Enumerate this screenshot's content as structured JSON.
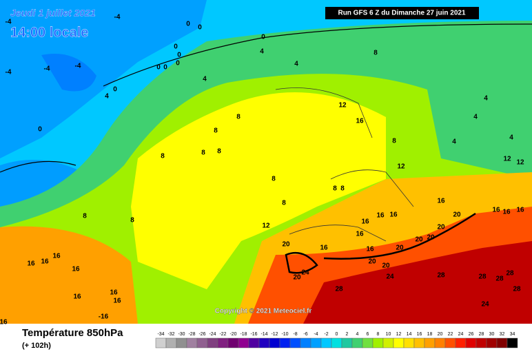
{
  "header": {
    "date": "Jeudi 1 juillet 2021",
    "time": "14:00 locale",
    "run": "Run GFS 6 Z du Dimanche 27 juin 2021"
  },
  "copyright": "Copyright © 2021 Meteociel.fr",
  "footer": {
    "title": "Température 850hPa",
    "lead": "(+ 102h)"
  },
  "legend": {
    "ticks": [
      -34,
      -32,
      -30,
      -28,
      -26,
      -24,
      -22,
      -20,
      -18,
      -16,
      -14,
      -12,
      -10,
      -8,
      -6,
      -4,
      -2,
      0,
      2,
      4,
      6,
      8,
      10,
      12,
      14,
      16,
      18,
      20,
      22,
      24,
      26,
      28,
      30,
      32,
      34
    ],
    "colors": [
      "#d0d0d0",
      "#b0b0b0",
      "#909090",
      "#a080a0",
      "#906090",
      "#804080",
      "#802080",
      "#700070",
      "#900090",
      "#5000a0",
      "#2000c0",
      "#0000d0",
      "#0020f0",
      "#0050ff",
      "#0080ff",
      "#00a0ff",
      "#00c8ff",
      "#00e0e0",
      "#20c8a0",
      "#40d070",
      "#70e040",
      "#a0f000",
      "#d0f000",
      "#ffff00",
      "#ffe000",
      "#ffc000",
      "#ffa000",
      "#ff8000",
      "#ff5000",
      "#ff2000",
      "#e00000",
      "#c00000",
      "#a00000",
      "#800000",
      "#000000"
    ]
  },
  "contour_labels": [
    -4,
    -4,
    0,
    0,
    0,
    0,
    0,
    0,
    0,
    -4,
    -4,
    -4,
    0,
    4,
    4,
    8,
    4,
    0,
    4,
    0,
    12,
    16,
    8,
    8,
    8,
    4,
    4,
    4,
    4,
    8,
    8,
    8,
    12,
    12,
    12,
    8,
    8,
    8,
    8,
    8,
    8,
    12,
    16,
    16,
    16,
    16,
    20,
    20,
    16,
    16,
    16,
    16,
    20,
    20,
    20,
    20,
    16,
    16,
    20,
    20,
    24,
    20,
    24,
    28,
    28,
    28,
    28,
    28,
    28,
    24,
    16,
    16,
    16,
    16,
    16,
    16,
    16,
    -16,
    16
  ]
}
